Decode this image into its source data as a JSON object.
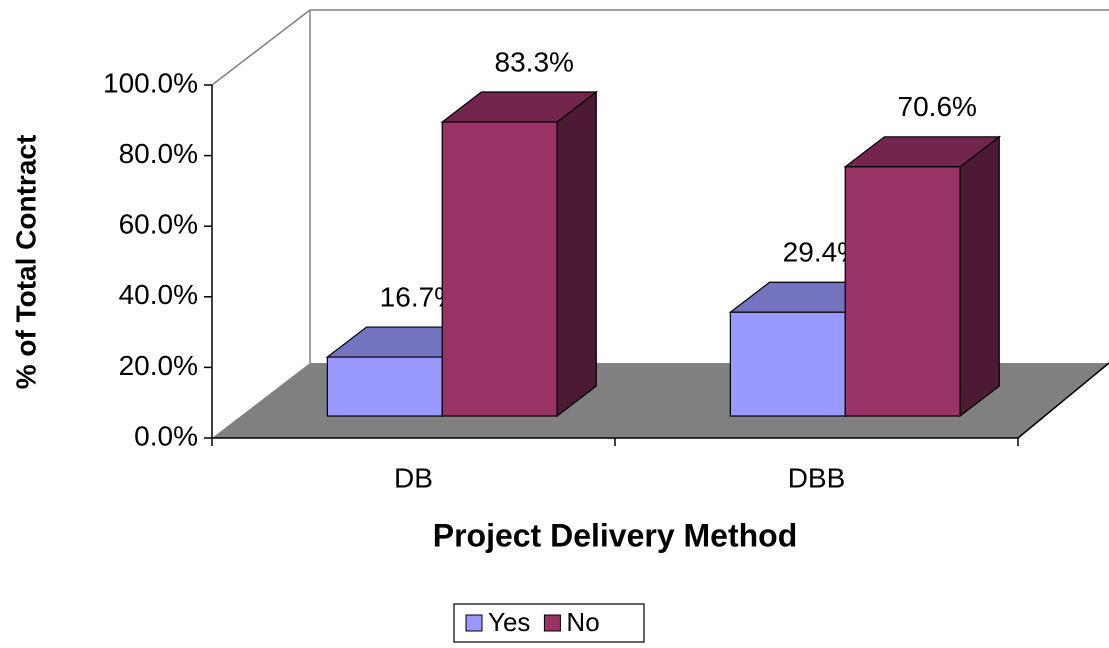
{
  "chart_data": {
    "type": "bar3d",
    "y_label": "% of Total Contract",
    "x_label": "Project Delivery Method",
    "categories": [
      "DB",
      "DBB"
    ],
    "series": [
      {
        "name": "Yes",
        "color": "#9999ff",
        "values": [
          16.7,
          29.4
        ],
        "value_labels": [
          "16.7%",
          "29.4%"
        ]
      },
      {
        "name": "No",
        "color": "#993366",
        "values": [
          83.3,
          70.6
        ],
        "value_labels": [
          "83.3%",
          "70.6%"
        ]
      }
    ],
    "ylim": [
      0,
      100
    ],
    "yticks": [
      {
        "value": 0,
        "label": "0.0%"
      },
      {
        "value": 20,
        "label": "20.0%"
      },
      {
        "value": 40,
        "label": "40.0%"
      },
      {
        "value": 60,
        "label": "60.0%"
      },
      {
        "value": 80,
        "label": "80.0%"
      },
      {
        "value": 100,
        "label": "100.0%"
      }
    ],
    "legend": "bottom"
  }
}
